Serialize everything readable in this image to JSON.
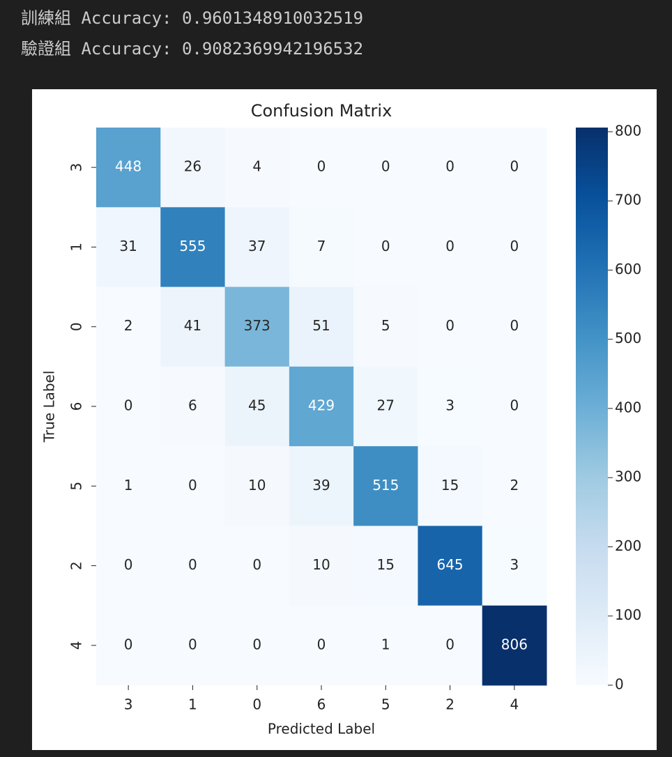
{
  "output": {
    "lines": [
      "訓練組 Accuracy: 0.9601348910032519",
      "驗證組 Accuracy: 0.9082369942196532"
    ]
  },
  "chart_data": {
    "type": "heatmap",
    "title": "Confusion Matrix",
    "x_label": "Predicted Label",
    "y_label": "True Label",
    "x_categories": [
      "3",
      "1",
      "0",
      "6",
      "5",
      "2",
      "4"
    ],
    "y_categories": [
      "3",
      "1",
      "0",
      "6",
      "5",
      "2",
      "4"
    ],
    "values": [
      [
        448,
        26,
        4,
        0,
        0,
        0,
        0
      ],
      [
        31,
        555,
        37,
        7,
        0,
        0,
        0
      ],
      [
        2,
        41,
        373,
        51,
        5,
        0,
        0
      ],
      [
        0,
        6,
        45,
        429,
        27,
        3,
        0
      ],
      [
        1,
        0,
        10,
        39,
        515,
        15,
        2
      ],
      [
        0,
        0,
        0,
        10,
        15,
        645,
        3
      ],
      [
        0,
        0,
        0,
        0,
        1,
        0,
        806
      ]
    ],
    "colormap": "Blues",
    "zlim": [
      0,
      806
    ],
    "zticks": [
      0,
      100,
      200,
      300,
      400,
      500,
      600,
      700,
      800
    ]
  }
}
